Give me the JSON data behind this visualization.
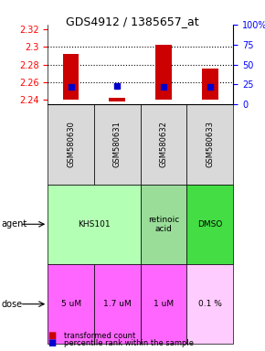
{
  "title": "GDS4912 / 1385657_at",
  "samples": [
    "GSM580630",
    "GSM580631",
    "GSM580632",
    "GSM580633"
  ],
  "bar_bottoms": [
    2.24,
    2.238,
    2.24,
    2.24
  ],
  "bar_tops": [
    2.292,
    2.242,
    2.302,
    2.275
  ],
  "blue_values": [
    2.255,
    2.256,
    2.255,
    2.255
  ],
  "ylim": [
    2.235,
    2.325
  ],
  "yticks_left": [
    2.24,
    2.26,
    2.28,
    2.3,
    2.32
  ],
  "yticks_right": [
    0,
    25,
    50,
    75,
    100
  ],
  "yticks_right_labels": [
    "0",
    "25",
    "50",
    "75",
    "100%"
  ],
  "gridlines": [
    2.3,
    2.28,
    2.26
  ],
  "agent_labels": [
    "KHS101",
    "KHS101",
    "retinoic\nacid",
    "DMSO"
  ],
  "agent_spans": [
    [
      0,
      1
    ],
    [
      2
    ],
    [
      3
    ]
  ],
  "agent_texts": [
    "KHS101",
    "retinoic\nacid",
    "DMSO"
  ],
  "agent_colors": [
    "#b3ffb3",
    "#b3ffb3",
    "#99e699",
    "#33cc33"
  ],
  "dose_labels": [
    "5 uM",
    "1.7 uM",
    "1 uM",
    "0.1 %"
  ],
  "dose_colors": [
    "#ff99ff",
    "#ff99ff",
    "#ff99ff",
    "#ffccff"
  ],
  "bar_color": "#cc0000",
  "blue_color": "#0000cc",
  "sample_bg": "#d9d9d9",
  "legend_items": [
    {
      "color": "#cc0000",
      "label": "transformed count"
    },
    {
      "color": "#0000cc",
      "label": "percentile rank within the sample"
    }
  ]
}
